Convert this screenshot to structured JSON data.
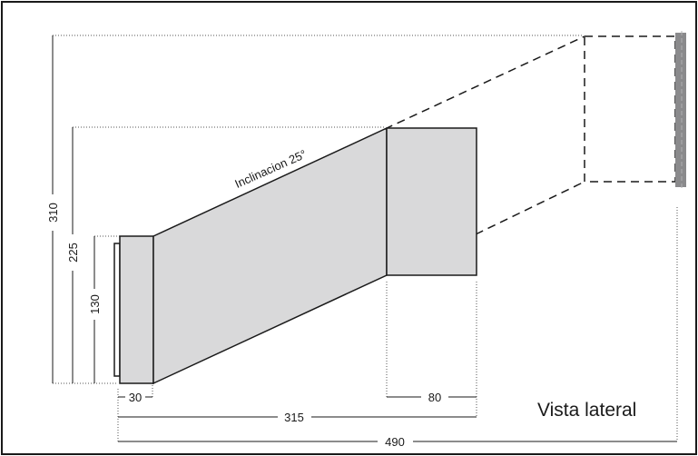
{
  "title": "Vista lateral",
  "inclination_label": "Inclinacion 25°",
  "dimensions": {
    "total_height": "310",
    "duct_height": "225",
    "collar_height": "130",
    "collar_width": "30",
    "duct_length": "315",
    "outlet_width": "80",
    "total_length": "490"
  },
  "colors": {
    "duct_fill": "#d9d9da",
    "outline": "#1a1a1a",
    "wall": "#8a8a8c"
  }
}
